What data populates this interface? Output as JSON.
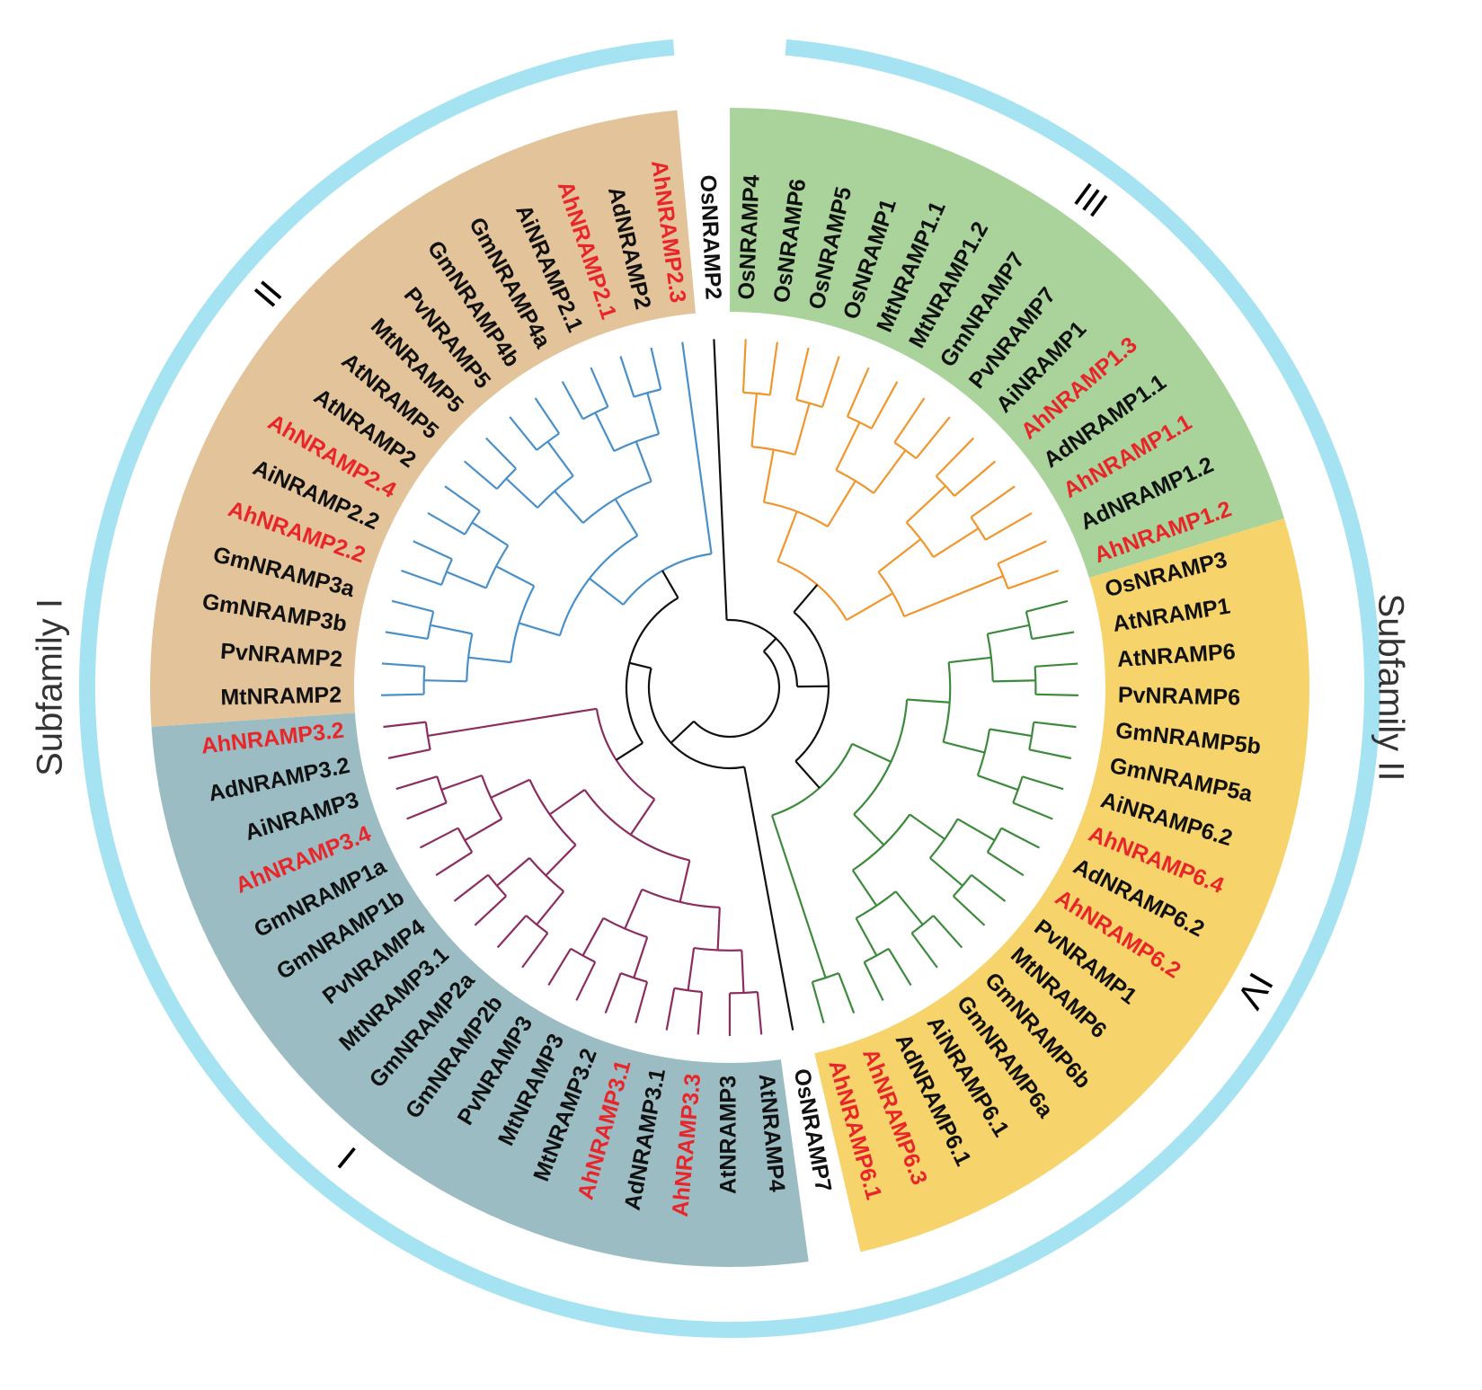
{
  "highlight_color": "#e8262a",
  "sections": [
    {
      "leaves": [
        {
          "name": "OsNRAMP2",
          "highlight": false
        }
      ]
    },
    {
      "label": "III",
      "color": "#a9d39b",
      "branch_color": "#f0962d",
      "leaves": [
        {
          "name": "OsNRAMP4",
          "highlight": false
        },
        {
          "name": "OsNRAMP6",
          "highlight": false
        },
        {
          "name": "OsNRAMP5",
          "highlight": false
        },
        {
          "name": "OsNRAMP1",
          "highlight": false
        },
        {
          "name": "MtNRAMP1.1",
          "highlight": false
        },
        {
          "name": "MtNRAMP1.2",
          "highlight": false
        },
        {
          "name": "GmNRAMP7",
          "highlight": false
        },
        {
          "name": "PvNRAMP7",
          "highlight": false
        },
        {
          "name": "AiNRAMP1",
          "highlight": false
        },
        {
          "name": "AhNRAMP1.3",
          "highlight": true
        },
        {
          "name": "AdNRAMP1.1",
          "highlight": false
        },
        {
          "name": "AhNRAMP1.1",
          "highlight": true
        },
        {
          "name": "AdNRAMP1.2",
          "highlight": false
        },
        {
          "name": "AhNRAMP1.2",
          "highlight": true
        }
      ]
    },
    {
      "label": "IV",
      "color": "#f7d36b",
      "branch_color": "#3d8a3d",
      "leaves": [
        {
          "name": "OsNRAMP3",
          "highlight": false
        },
        {
          "name": "AtNRAMP1",
          "highlight": false
        },
        {
          "name": "AtNRAMP6",
          "highlight": false
        },
        {
          "name": "PvNRAMP6",
          "highlight": false
        },
        {
          "name": "GmNRAMP5b",
          "highlight": false
        },
        {
          "name": "GmNRAMP5a",
          "highlight": false
        },
        {
          "name": "AiNRAMP6.2",
          "highlight": false
        },
        {
          "name": "AhNRAMP6.4",
          "highlight": true
        },
        {
          "name": "AdNRAMP6.2",
          "highlight": false
        },
        {
          "name": "AhNRAMP6.2",
          "highlight": true
        },
        {
          "name": "PvNRAMP1",
          "highlight": false
        },
        {
          "name": "MtNRAMP6",
          "highlight": false
        },
        {
          "name": "GmNRAMP6b",
          "highlight": false
        },
        {
          "name": "GmNRAMP6a",
          "highlight": false
        },
        {
          "name": "AiNRAMP6.1",
          "highlight": false
        },
        {
          "name": "AdNRAMP6.1",
          "highlight": false
        },
        {
          "name": "AhNRAMP6.3",
          "highlight": true
        },
        {
          "name": "AhNRAMP6.1",
          "highlight": true
        }
      ]
    },
    {
      "leaves": [
        {
          "name": "OsNRAMP7",
          "highlight": false
        }
      ]
    },
    {
      "label": "I",
      "color": "#9bbcc2",
      "branch_color": "#8b2d5f",
      "leaves": [
        {
          "name": "AtNRAMP4",
          "highlight": false
        },
        {
          "name": "AtNRAMP3",
          "highlight": false
        },
        {
          "name": "AhNRAMP3.3",
          "highlight": true
        },
        {
          "name": "AdNRAMP3.1",
          "highlight": false
        },
        {
          "name": "AhNRAMP3.1",
          "highlight": true
        },
        {
          "name": "MtNRAMP3.2",
          "highlight": false
        },
        {
          "name": "MtNRAMP3",
          "highlight": false
        },
        {
          "name": "PvNRAMP3",
          "highlight": false
        },
        {
          "name": "GmNRAMP2b",
          "highlight": false
        },
        {
          "name": "GmNRAMP2a",
          "highlight": false
        },
        {
          "name": "MtNRAMP3.1",
          "highlight": false
        },
        {
          "name": "PvNRAMP4",
          "highlight": false
        },
        {
          "name": "GmNRAMP1b",
          "highlight": false
        },
        {
          "name": "GmNRAMP1a",
          "highlight": false
        },
        {
          "name": "AhNRAMP3.4",
          "highlight": true
        },
        {
          "name": "AiNRAMP3",
          "highlight": false
        },
        {
          "name": "AdNRAMP3.2",
          "highlight": false
        },
        {
          "name": "AhNRAMP3.2",
          "highlight": true
        }
      ]
    },
    {
      "label": "II",
      "color": "#e3c49a",
      "branch_color": "#4a90c8",
      "leaves": [
        {
          "name": "MtNRAMP2",
          "highlight": false
        },
        {
          "name": "PvNRAMP2",
          "highlight": false
        },
        {
          "name": "GmNRAMP3b",
          "highlight": false
        },
        {
          "name": "GmNRAMP3a",
          "highlight": false
        },
        {
          "name": "AhNRAMP2.2",
          "highlight": true
        },
        {
          "name": "AiNRAMP2.2",
          "highlight": false
        },
        {
          "name": "AhNRAMP2.4",
          "highlight": true
        },
        {
          "name": "AtNRAMP2",
          "highlight": false
        },
        {
          "name": "AtNRAMP5",
          "highlight": false
        },
        {
          "name": "MtNRAMP5",
          "highlight": false
        },
        {
          "name": "PvNRAMP5",
          "highlight": false
        },
        {
          "name": "GmNRAMP4b",
          "highlight": false
        },
        {
          "name": "GmNRAMP4a",
          "highlight": false
        },
        {
          "name": "AiNRAMP2.1",
          "highlight": false
        },
        {
          "name": "AhNRAMP2.1",
          "highlight": true
        },
        {
          "name": "AdNRAMP2",
          "highlight": false
        },
        {
          "name": "AhNRAMP2.3",
          "highlight": true
        }
      ]
    }
  ],
  "subfamilies": [
    {
      "label": "Subfamily I"
    },
    {
      "label": "Subfamily II"
    }
  ]
}
